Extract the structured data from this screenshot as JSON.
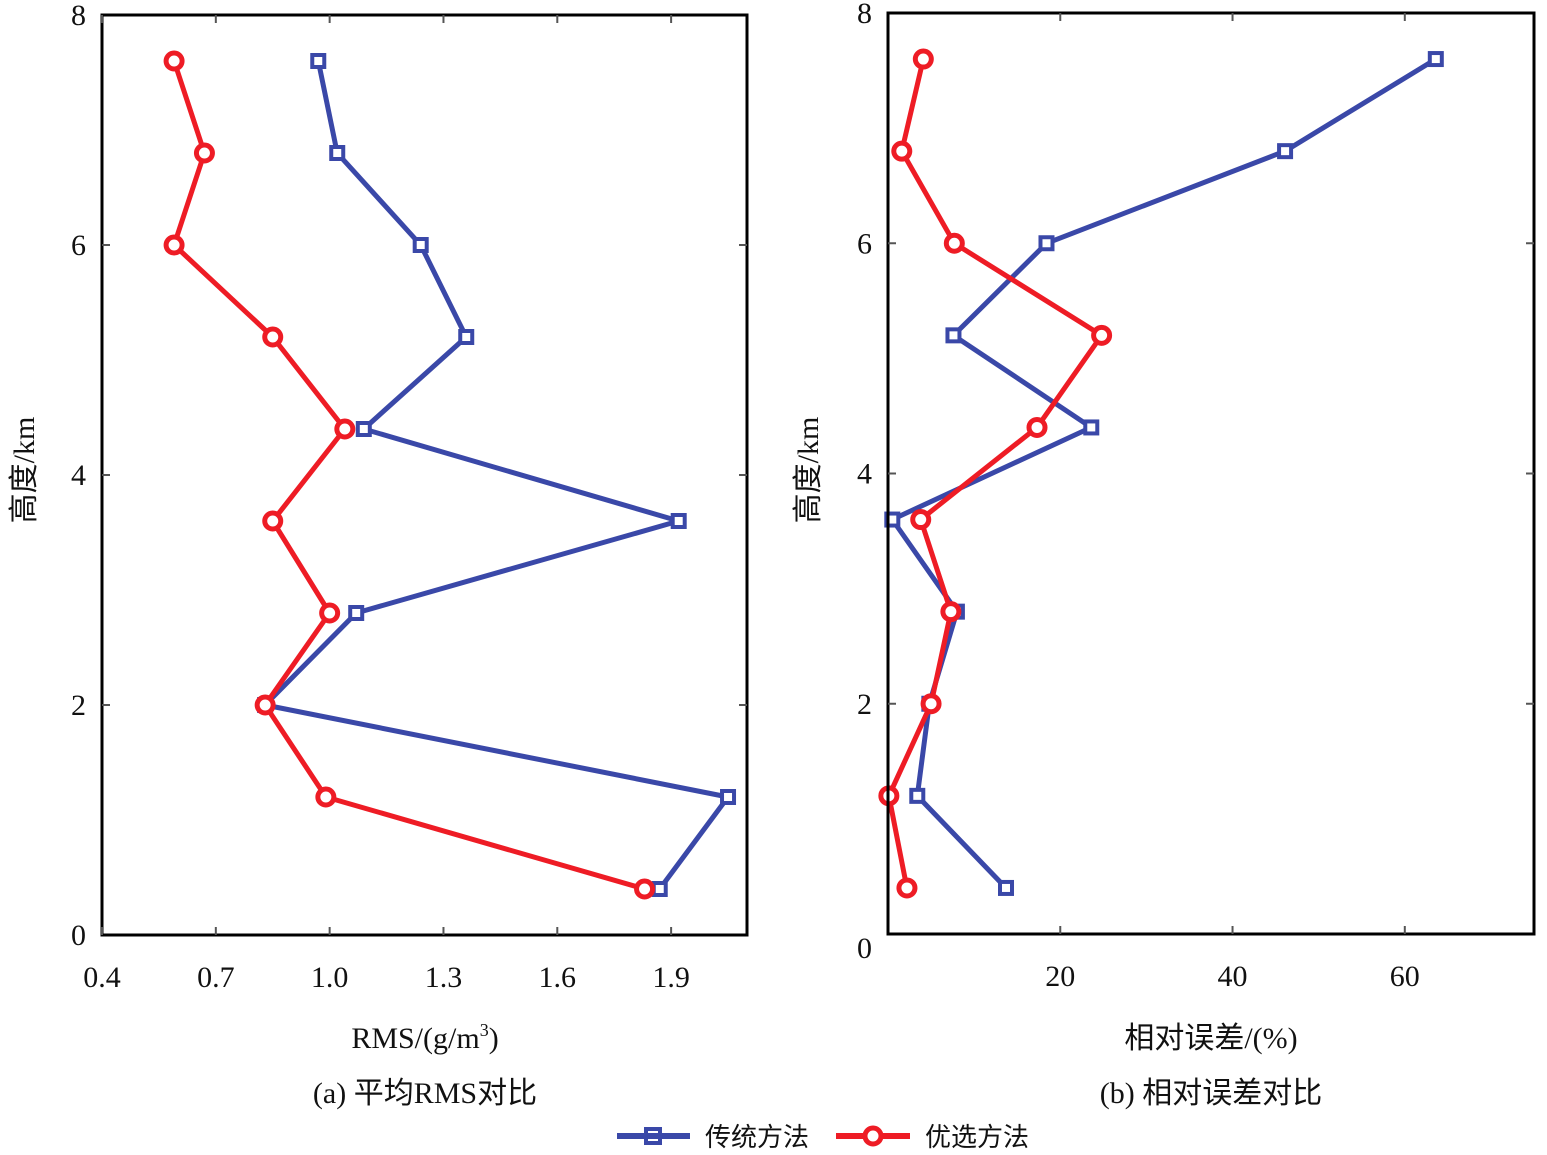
{
  "chart_data": [
    {
      "type": "line",
      "panel": "a",
      "caption": "(a) 平均RMS对比",
      "xlabel": "RMS/(g/m³)",
      "xlabel_main": "RMS/(g/m",
      "xlabel_sup": "3",
      "xlabel_tail": ")",
      "ylabel": "高度/km",
      "xlim": [
        0.4,
        2.1
      ],
      "ylim": [
        0,
        8
      ],
      "xticks": [
        0.4,
        0.7,
        1.0,
        1.3,
        1.6,
        1.9
      ],
      "xtick_labels": [
        "0.4",
        "0.7",
        "1.0",
        "1.3",
        "1.6",
        "1.9"
      ],
      "yticks": [
        0,
        2,
        4,
        6,
        8
      ],
      "ytick_labels": [
        "0",
        "2",
        "4",
        "6",
        "8"
      ],
      "grid": false,
      "y": [
        7.6,
        6.8,
        6.0,
        5.2,
        4.4,
        3.6,
        2.8,
        2.0,
        1.2,
        0.4
      ],
      "series": [
        {
          "name": "传统方法",
          "marker": "square",
          "color": "#3a48a8",
          "values": [
            0.97,
            1.02,
            1.24,
            1.36,
            1.09,
            1.92,
            1.07,
            0.83,
            2.05,
            1.87
          ]
        },
        {
          "name": "优选方法",
          "marker": "circle",
          "color": "#ee1c25",
          "values": [
            0.59,
            0.67,
            0.59,
            0.85,
            1.04,
            0.85,
            1.0,
            0.83,
            0.99,
            1.83
          ]
        }
      ]
    },
    {
      "type": "line",
      "panel": "b",
      "caption": "(b) 相对误差对比",
      "xlabel": "相对误差/(%)",
      "ylabel": "高度/km",
      "xlim": [
        0,
        75
      ],
      "ylim": [
        0,
        8
      ],
      "xticks": [
        20,
        40,
        60
      ],
      "xtick_labels": [
        "20",
        "40",
        "60"
      ],
      "yticks": [
        0,
        2,
        4,
        6,
        8
      ],
      "ytick_labels": [
        "0",
        "2",
        "4",
        "6",
        "8"
      ],
      "grid": false,
      "y": [
        7.6,
        6.8,
        6.0,
        5.2,
        4.4,
        3.6,
        2.8,
        2.0,
        1.2,
        0.4
      ],
      "series": [
        {
          "name": "传统方法",
          "marker": "square",
          "color": "#3a48a8",
          "values": [
            63.6,
            46.1,
            18.4,
            7.6,
            23.6,
            0.5,
            8.0,
            4.8,
            3.4,
            13.7
          ]
        },
        {
          "name": "优选方法",
          "marker": "circle",
          "color": "#ee1c25",
          "values": [
            4.1,
            1.6,
            7.7,
            24.8,
            17.3,
            3.8,
            7.3,
            5.0,
            0.1,
            2.2
          ]
        }
      ]
    }
  ],
  "legend": {
    "placement": "bottom-center",
    "items": [
      {
        "label": "传统方法",
        "marker": "square",
        "color": "#3a48a8"
      },
      {
        "label": "优选方法",
        "marker": "circle",
        "color": "#ee1c25"
      }
    ]
  }
}
